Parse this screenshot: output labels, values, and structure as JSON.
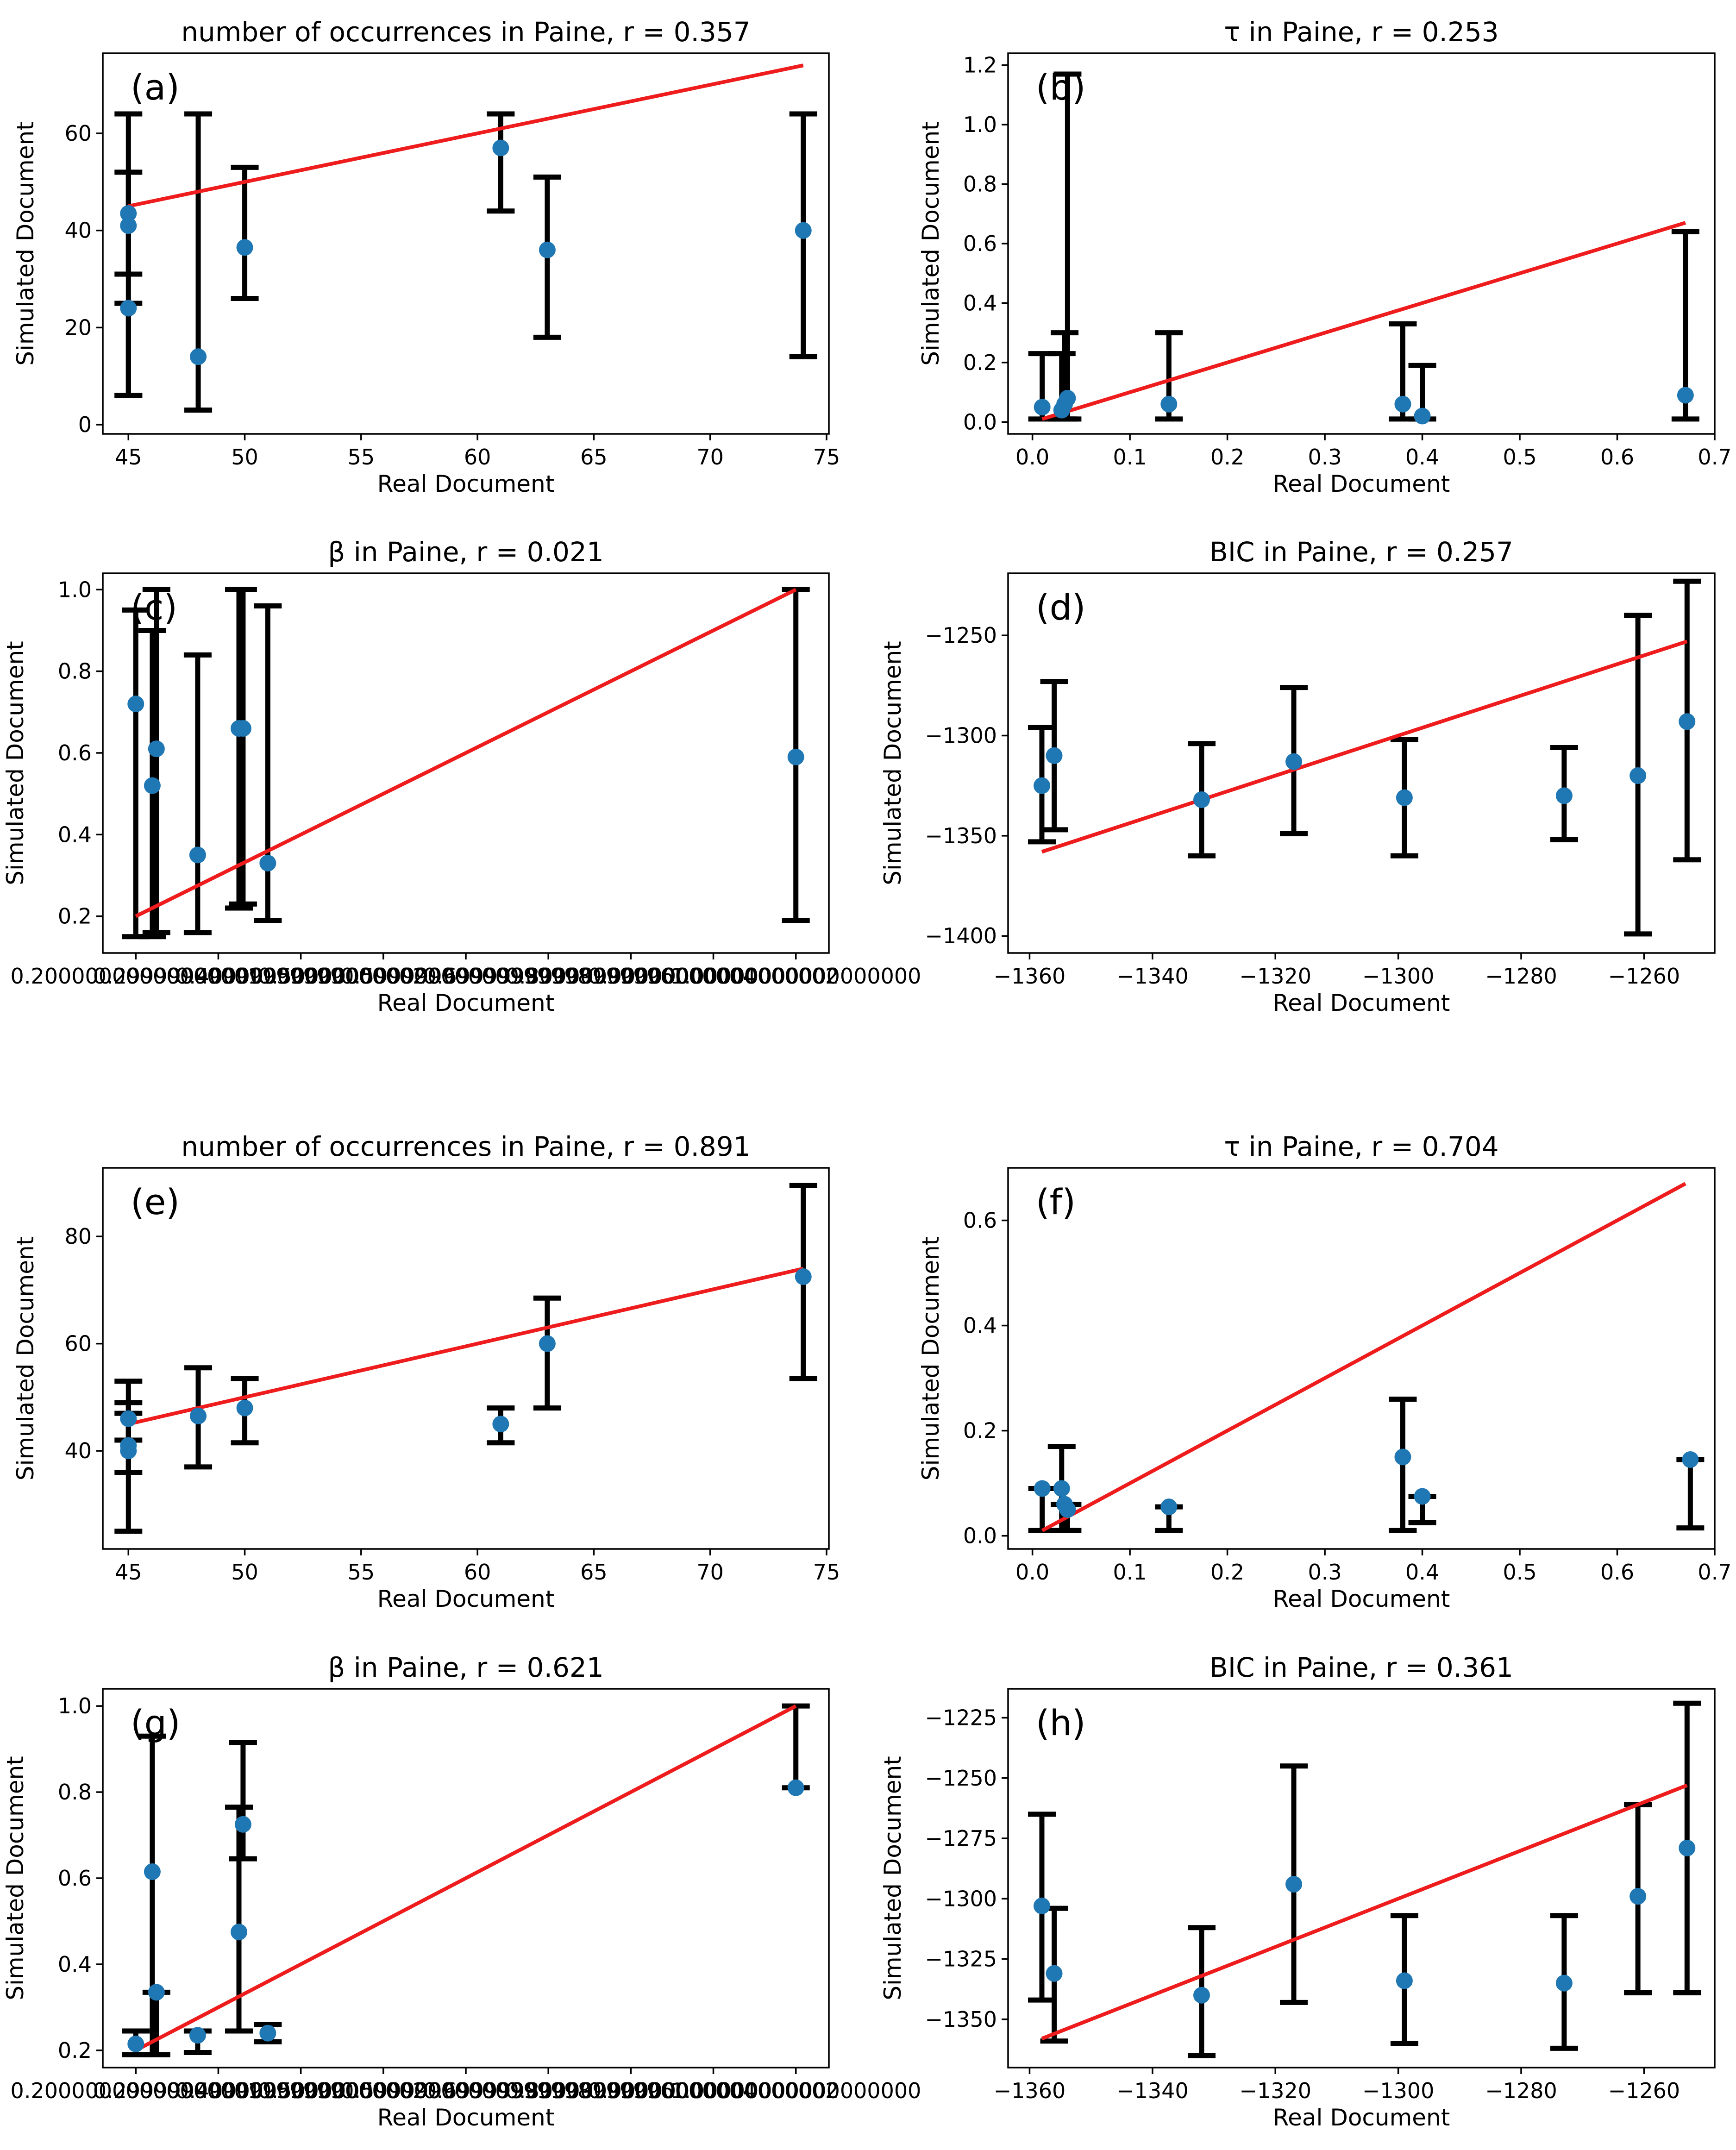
{
  "figure": {
    "xlabel": "Real Document",
    "ylabel": "Simulated Document",
    "colors": {
      "point": "#1f77b4",
      "fit_line": "#ee1c1c",
      "error_bar": "#000000",
      "axes": "#000000"
    }
  },
  "chart_data": [
    {
      "panel": "(a)",
      "type": "scatter",
      "title": "number of occurrences in Paine,  r = 0.357",
      "xlabel": "Real Document",
      "ylabel": "Simulated Document",
      "xlim": [
        43.9,
        75.1
      ],
      "ylim": [
        -1.9,
        76.5
      ],
      "xticks": [
        45,
        50,
        55,
        60,
        65,
        70,
        75
      ],
      "yticks": [
        0,
        20,
        40,
        60
      ],
      "points": [
        {
          "x": 45,
          "y": 43.5,
          "lo": 31,
          "hi": 64
        },
        {
          "x": 45,
          "y": 41,
          "lo": 6,
          "hi": 52
        },
        {
          "x": 45,
          "y": 24,
          "lo": 6,
          "hi": 25
        },
        {
          "x": 48,
          "y": 14,
          "lo": 3,
          "hi": 64
        },
        {
          "x": 50,
          "y": 36.5,
          "lo": 26,
          "hi": 53
        },
        {
          "x": 61,
          "y": 57,
          "lo": 44,
          "hi": 64
        },
        {
          "x": 63,
          "y": 36,
          "lo": 18,
          "hi": 51
        },
        {
          "x": 74,
          "y": 40,
          "lo": 14,
          "hi": 64
        }
      ],
      "fit_line": [
        [
          45,
          45
        ],
        [
          74,
          74
        ]
      ]
    },
    {
      "panel": "(b)",
      "type": "scatter",
      "title": "τ    in Paine,  r = 0.253",
      "title_symbol": "τ",
      "xlabel": "Real Document",
      "ylabel": "Simulated Document",
      "xlim": [
        -0.025,
        0.7
      ],
      "ylim": [
        -0.04,
        1.24
      ],
      "xticks": [
        0.0,
        0.1,
        0.2,
        0.3,
        0.4,
        0.5,
        0.6,
        0.7
      ],
      "yticks": [
        0.0,
        0.2,
        0.4,
        0.6,
        0.8,
        1.0,
        1.2
      ],
      "points": [
        {
          "x": 0.01,
          "y": 0.05,
          "lo": 0.01,
          "hi": 0.23
        },
        {
          "x": 0.03,
          "y": 0.04,
          "lo": 0.01,
          "hi": 0.23
        },
        {
          "x": 0.033,
          "y": 0.06,
          "lo": 0.01,
          "hi": 0.3
        },
        {
          "x": 0.036,
          "y": 0.08,
          "lo": 0.01,
          "hi": 1.17
        },
        {
          "x": 0.14,
          "y": 0.06,
          "lo": 0.01,
          "hi": 0.3
        },
        {
          "x": 0.38,
          "y": 0.06,
          "lo": 0.01,
          "hi": 0.33
        },
        {
          "x": 0.4,
          "y": 0.02,
          "lo": 0.01,
          "hi": 0.19
        },
        {
          "x": 0.67,
          "y": 0.09,
          "lo": 0.01,
          "hi": 0.64
        }
      ],
      "fit_line": [
        [
          0.01,
          0.01
        ],
        [
          0.67,
          0.67
        ]
      ]
    },
    {
      "panel": "(c)",
      "type": "scatter",
      "title": "β    in Paine,  r = 0.021",
      "title_symbol": "β",
      "xlabel": "Real Document",
      "ylabel": "Simulated Document",
      "xlim": [
        0.16,
        1.04
      ],
      "ylim": [
        0.11,
        1.04
      ],
      "xticks": [
        0.2,
        0.3,
        0.4,
        0.5,
        0.6,
        0.7,
        0.8,
        0.9,
        1.0
      ],
      "yticks": [
        0.2,
        0.4,
        0.6,
        0.8,
        1.0
      ],
      "points": [
        {
          "x": 0.2,
          "y": 0.72,
          "lo": 0.15,
          "hi": 0.95
        },
        {
          "x": 0.22,
          "y": 0.52,
          "lo": 0.15,
          "hi": 0.9
        },
        {
          "x": 0.225,
          "y": 0.61,
          "lo": 0.16,
          "hi": 1.0
        },
        {
          "x": 0.275,
          "y": 0.35,
          "lo": 0.16,
          "hi": 0.84
        },
        {
          "x": 0.325,
          "y": 0.66,
          "lo": 0.22,
          "hi": 1.0
        },
        {
          "x": 0.33,
          "y": 0.66,
          "lo": 0.23,
          "hi": 1.0
        },
        {
          "x": 0.36,
          "y": 0.33,
          "lo": 0.19,
          "hi": 0.96
        },
        {
          "x": 1.0,
          "y": 0.59,
          "lo": 0.19,
          "hi": 1.0
        }
      ],
      "fit_line": [
        [
          0.2,
          0.2
        ],
        [
          1.0,
          1.0
        ]
      ]
    },
    {
      "panel": "(d)",
      "type": "scatter",
      "title": "BIC in Paine,  r = 0.257",
      "xlabel": "Real Document",
      "ylabel": "Simulated Document",
      "xlim": [
        -1363.5,
        -1248.5
      ],
      "ylim": [
        -1408.5,
        -1219
      ],
      "xticks": [
        -1360,
        -1340,
        -1320,
        -1300,
        -1280,
        -1260
      ],
      "yticks": [
        -1400,
        -1350,
        -1300,
        -1250
      ],
      "points": [
        {
          "x": -1358,
          "y": -1325,
          "lo": -1353,
          "hi": -1296
        },
        {
          "x": -1356,
          "y": -1310,
          "lo": -1347,
          "hi": -1273
        },
        {
          "x": -1332,
          "y": -1332,
          "lo": -1360,
          "hi": -1304
        },
        {
          "x": -1317,
          "y": -1313,
          "lo": -1349,
          "hi": -1276
        },
        {
          "x": -1299,
          "y": -1331,
          "lo": -1360,
          "hi": -1302
        },
        {
          "x": -1273,
          "y": -1330,
          "lo": -1352,
          "hi": -1306
        },
        {
          "x": -1261,
          "y": -1320,
          "lo": -1399,
          "hi": -1240
        },
        {
          "x": -1253,
          "y": -1293,
          "lo": -1362,
          "hi": -1223
        }
      ],
      "fit_line": [
        [
          -1358,
          -1358
        ],
        [
          -1253,
          -1253
        ]
      ]
    },
    {
      "panel": "(e)",
      "type": "scatter",
      "title": "number of occurrences in Paine,  r = 0.891",
      "xlabel": "Real Document",
      "ylabel": "Simulated Document",
      "xlim": [
        43.9,
        75.1
      ],
      "ylim": [
        21.7,
        92.8
      ],
      "xticks": [
        45,
        50,
        55,
        60,
        65,
        70,
        75
      ],
      "yticks": [
        40,
        60,
        80
      ],
      "points": [
        {
          "x": 45,
          "y": 46,
          "lo": 42,
          "hi": 53
        },
        {
          "x": 45,
          "y": 41,
          "lo": 36,
          "hi": 49
        },
        {
          "x": 45,
          "y": 40,
          "lo": 25,
          "hi": 47
        },
        {
          "x": 48,
          "y": 46.5,
          "lo": 37,
          "hi": 55.5
        },
        {
          "x": 50,
          "y": 48,
          "lo": 41.5,
          "hi": 53.5
        },
        {
          "x": 61,
          "y": 45,
          "lo": 41.5,
          "hi": 48
        },
        {
          "x": 63,
          "y": 60,
          "lo": 48,
          "hi": 68.5
        },
        {
          "x": 74,
          "y": 72.5,
          "lo": 53.5,
          "hi": 89.5
        }
      ],
      "fit_line": [
        [
          45,
          45
        ],
        [
          74,
          74
        ]
      ]
    },
    {
      "panel": "(f)",
      "type": "scatter",
      "title": "τ    in Paine,  r = 0.704",
      "title_symbol": "τ",
      "xlabel": "Real Document",
      "ylabel": "Simulated Document",
      "xlim": [
        -0.025,
        0.7
      ],
      "ylim": [
        -0.025,
        0.7
      ],
      "xticks": [
        0.0,
        0.1,
        0.2,
        0.3,
        0.4,
        0.5,
        0.6,
        0.7
      ],
      "yticks": [
        0.0,
        0.2,
        0.4,
        0.6
      ],
      "points": [
        {
          "x": 0.01,
          "y": 0.09,
          "lo": 0.01,
          "hi": 0.09
        },
        {
          "x": 0.03,
          "y": 0.09,
          "lo": 0.01,
          "hi": 0.17
        },
        {
          "x": 0.033,
          "y": 0.06,
          "lo": 0.01,
          "hi": 0.06
        },
        {
          "x": 0.036,
          "y": 0.05,
          "lo": 0.01,
          "hi": 0.06
        },
        {
          "x": 0.14,
          "y": 0.055,
          "lo": 0.01,
          "hi": 0.055
        },
        {
          "x": 0.38,
          "y": 0.15,
          "lo": 0.01,
          "hi": 0.26
        },
        {
          "x": 0.4,
          "y": 0.075,
          "lo": 0.025,
          "hi": 0.075
        },
        {
          "x": 0.675,
          "y": 0.145,
          "lo": 0.015,
          "hi": 0.145
        }
      ],
      "fit_line": [
        [
          0.01,
          0.01
        ],
        [
          0.67,
          0.67
        ]
      ]
    },
    {
      "panel": "(g)",
      "type": "scatter",
      "title": "β    in Paine,  r = 0.621",
      "title_symbol": "β",
      "xlabel": "Real Document",
      "ylabel": "Simulated Document",
      "xlim": [
        0.16,
        1.04
      ],
      "ylim": [
        0.16,
        1.04
      ],
      "xticks": [
        0.2,
        0.3,
        0.4,
        0.5,
        0.6,
        0.7,
        0.8,
        0.9,
        1.0
      ],
      "yticks": [
        0.2,
        0.4,
        0.6,
        0.8,
        1.0
      ],
      "points": [
        {
          "x": 0.2,
          "y": 0.215,
          "lo": 0.19,
          "hi": 0.245
        },
        {
          "x": 0.22,
          "y": 0.615,
          "lo": 0.19,
          "hi": 0.93
        },
        {
          "x": 0.225,
          "y": 0.335,
          "lo": 0.19,
          "hi": 0.335
        },
        {
          "x": 0.275,
          "y": 0.235,
          "lo": 0.195,
          "hi": 0.245
        },
        {
          "x": 0.325,
          "y": 0.475,
          "lo": 0.245,
          "hi": 0.765
        },
        {
          "x": 0.33,
          "y": 0.725,
          "lo": 0.645,
          "hi": 0.915
        },
        {
          "x": 0.36,
          "y": 0.24,
          "lo": 0.22,
          "hi": 0.26
        },
        {
          "x": 1.0,
          "y": 0.81,
          "lo": 0.81,
          "hi": 1.0
        }
      ],
      "fit_line": [
        [
          0.2,
          0.2
        ],
        [
          1.0,
          1.0
        ]
      ]
    },
    {
      "panel": "(h)",
      "type": "scatter",
      "title": "BIC in Paine,  r = 0.361",
      "xlabel": "Real Document",
      "ylabel": "Simulated Document",
      "xlim": [
        -1363.5,
        -1248.5
      ],
      "ylim": [
        -1370,
        -1213
      ],
      "xticks": [
        -1360,
        -1340,
        -1320,
        -1300,
        -1280,
        -1260
      ],
      "yticks": [
        -1350,
        -1325,
        -1300,
        -1275,
        -1250,
        -1225
      ],
      "points": [
        {
          "x": -1358,
          "y": -1303,
          "lo": -1342,
          "hi": -1265
        },
        {
          "x": -1356,
          "y": -1331,
          "lo": -1359,
          "hi": -1304
        },
        {
          "x": -1332,
          "y": -1340,
          "lo": -1365,
          "hi": -1312
        },
        {
          "x": -1317,
          "y": -1294,
          "lo": -1343,
          "hi": -1245
        },
        {
          "x": -1299,
          "y": -1334,
          "lo": -1360,
          "hi": -1307
        },
        {
          "x": -1273,
          "y": -1335,
          "lo": -1362,
          "hi": -1307
        },
        {
          "x": -1261,
          "y": -1299,
          "lo": -1339,
          "hi": -1261
        },
        {
          "x": -1253,
          "y": -1279,
          "lo": -1339,
          "hi": -1219
        }
      ],
      "fit_line": [
        [
          -1358,
          -1358
        ],
        [
          -1253,
          -1253
        ]
      ]
    }
  ]
}
